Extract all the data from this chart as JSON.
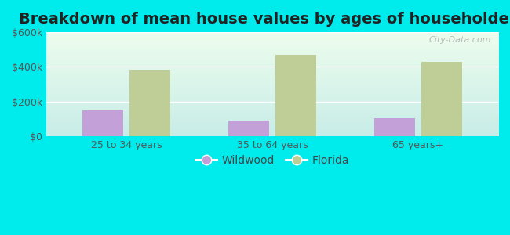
{
  "title": "Breakdown of mean house values by ages of householders",
  "categories": [
    "25 to 34 years",
    "35 to 64 years",
    "65 years+"
  ],
  "wildwood_values": [
    150000,
    90000,
    105000
  ],
  "florida_values": [
    385000,
    470000,
    430000
  ],
  "wildwood_color": "#c4a0d8",
  "florida_color": "#bfce96",
  "ylim": [
    0,
    600000
  ],
  "yticks": [
    0,
    200000,
    400000,
    600000
  ],
  "ytick_labels": [
    "$0",
    "$200k",
    "$400k",
    "$600k"
  ],
  "background_color": "#00ecec",
  "title_fontsize": 14,
  "tick_fontsize": 9,
  "legend_fontsize": 10,
  "bar_width": 0.28,
  "watermark": "City-Data.com"
}
